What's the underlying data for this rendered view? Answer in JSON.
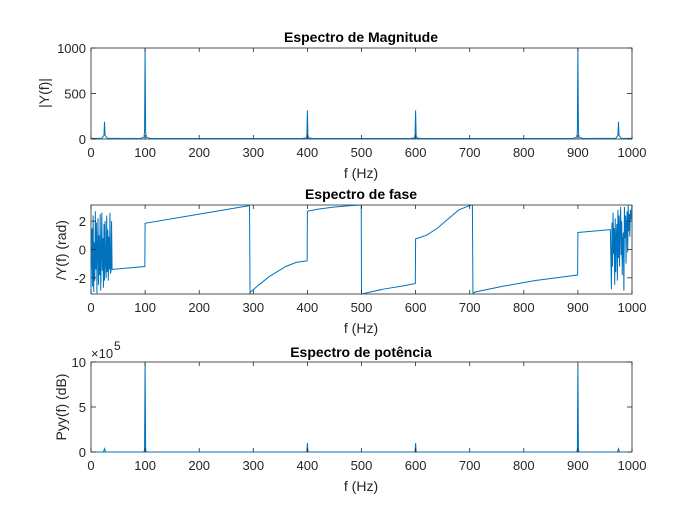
{
  "chart_data": [
    {
      "type": "line",
      "title": "Espectro de Magnitude",
      "xlabel": "f (Hz)",
      "ylabel": "|Y(f)|",
      "xlim": [
        0,
        1000
      ],
      "ylim": [
        0,
        1000
      ],
      "xticks": [
        "0",
        "100",
        "200",
        "300",
        "400",
        "500",
        "600",
        "700",
        "800",
        "900",
        "1000"
      ],
      "yticks": [
        "0",
        "500",
        "1000"
      ],
      "grid": false,
      "color": "#0072BD",
      "series": [
        {
          "x": [
            0,
            20,
            24,
            25,
            26,
            30,
            90,
            98,
            99,
            100,
            101,
            102,
            110,
            390,
            398,
            399,
            400,
            401,
            402,
            410,
            590,
            598,
            599,
            600,
            601,
            602,
            610,
            890,
            898,
            899,
            900,
            901,
            902,
            910,
            970,
            974,
            975,
            976,
            980,
            1000
          ],
          "y": [
            5,
            8,
            40,
            190,
            40,
            8,
            5,
            20,
            80,
            1000,
            80,
            20,
            5,
            5,
            12,
            40,
            315,
            40,
            12,
            5,
            5,
            12,
            40,
            315,
            40,
            12,
            5,
            5,
            20,
            80,
            1000,
            80,
            20,
            5,
            8,
            40,
            190,
            40,
            8,
            5
          ]
        }
      ]
    },
    {
      "type": "line",
      "title": "Espectro de fase",
      "xlabel": "f (Hz)",
      "ylabel": "/Y(f) (rad)",
      "xlim": [
        0,
        1000
      ],
      "ylim": [
        -3.14,
        3.14
      ],
      "xticks": [
        "0",
        "100",
        "200",
        "300",
        "400",
        "500",
        "600",
        "700",
        "800",
        "900",
        "1000"
      ],
      "yticks": [
        "2",
        "0",
        "-2"
      ],
      "grid": false,
      "color": "#0072BD",
      "series": [
        {
          "x": [
            0,
            2,
            3,
            4,
            5,
            6,
            7,
            8,
            9,
            10,
            11,
            12,
            13,
            14,
            15,
            16,
            17,
            18,
            19,
            20,
            21,
            22,
            23,
            24,
            25,
            26,
            27,
            28,
            29,
            30,
            31,
            32,
            33,
            34,
            35,
            36,
            37,
            38,
            39,
            40,
            99.5,
            100,
            293,
            294,
            295,
            310,
            330,
            360,
            380,
            399.5,
            400,
            420,
            450,
            480,
            499.5,
            500,
            540,
            580,
            599.5,
            600,
            620,
            640,
            660,
            680,
            700,
            705,
            706,
            710,
            760,
            820,
            880,
            899.5,
            900,
            960,
            962,
            963,
            964,
            965,
            966,
            967,
            968,
            969,
            970,
            971,
            972,
            973,
            974,
            975,
            976,
            977,
            978,
            979,
            980,
            981,
            982,
            983,
            984,
            985,
            986,
            987,
            988,
            989,
            990,
            991,
            992,
            993,
            994,
            995,
            996,
            997,
            998,
            1000
          ],
          "y": [
            -2.8,
            1.5,
            -2.6,
            2.4,
            -3.0,
            0.5,
            -2.2,
            2.7,
            -1.4,
            1.9,
            -3.1,
            0.2,
            2.2,
            -2.5,
            1.0,
            -1.8,
            2.5,
            -2.9,
            -0.5,
            2.6,
            -1.5,
            0.8,
            -2.7,
            1.8,
            -2.2,
            2.0,
            -1.0,
            -2.0,
            2.4,
            -1.6,
            1.4,
            -2.2,
            0.9,
            -1.4,
            2.6,
            -1.7,
            -1.5,
            2.0,
            -1.4,
            -1.4,
            -1.2,
            1.85,
            3.1,
            -3.14,
            -3.0,
            -2.5,
            -1.9,
            -1.2,
            -0.9,
            -0.8,
            2.7,
            2.85,
            3.0,
            3.1,
            3.14,
            -3.14,
            -2.8,
            -2.55,
            -2.4,
            0.75,
            1.0,
            1.5,
            2.15,
            2.8,
            3.1,
            3.14,
            -3.1,
            -3.0,
            -2.6,
            -2.2,
            -1.9,
            -1.8,
            1.2,
            1.4,
            -2.8,
            1.9,
            -1.2,
            2.6,
            -0.3,
            1.5,
            -2.5,
            2.2,
            -1.6,
            0.9,
            1.8,
            -2.2,
            2.8,
            -0.6,
            2.4,
            -1.2,
            1.6,
            3.0,
            -0.4,
            2.0,
            -1.8,
            0.6,
            1.2,
            -2.9,
            3.0,
            0.8,
            2.4,
            -1.0,
            1.9,
            2.7,
            -0.2,
            3.1,
            1.3,
            2.5,
            0.9,
            2.8,
            2.1,
            3.14
          ]
        }
      ]
    },
    {
      "type": "line",
      "title": "Espectro de potência",
      "xlabel": "f (Hz)",
      "ylabel": "Pyy(f) (dB)",
      "xlim": [
        0,
        1000
      ],
      "ylim": [
        0,
        10
      ],
      "yscale_label": "×10",
      "yscale_exponent": "5",
      "xticks": [
        "0",
        "100",
        "200",
        "300",
        "400",
        "500",
        "600",
        "700",
        "800",
        "900",
        "1000"
      ],
      "yticks": [
        "0",
        "5",
        "10"
      ],
      "grid": false,
      "color": "#0072BD",
      "series": [
        {
          "x": [
            0,
            23,
            25,
            27,
            98,
            99,
            100,
            101,
            102,
            398,
            399,
            400,
            401,
            402,
            598,
            599,
            600,
            601,
            602,
            898,
            899,
            900,
            901,
            902,
            973,
            975,
            977,
            1000
          ],
          "y": [
            0,
            0,
            0.36,
            0,
            0,
            0.3,
            10,
            0.3,
            0,
            0,
            0.05,
            1.0,
            0.05,
            0,
            0,
            0.05,
            1.0,
            0.05,
            0,
            0,
            0.3,
            9.7,
            0.3,
            0,
            0,
            0.36,
            0,
            0
          ]
        }
      ]
    }
  ]
}
